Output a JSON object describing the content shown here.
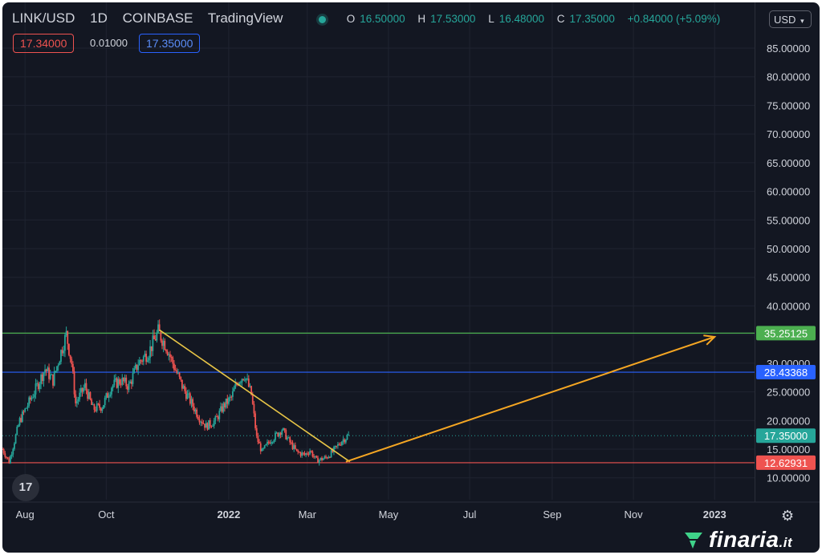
{
  "header": {
    "symbol": "LINK/USD",
    "interval": "1D",
    "exchange": "COINBASE",
    "platform": "TradingView",
    "open_label": "O",
    "open": "16.50000",
    "high_label": "H",
    "high": "17.53000",
    "low_label": "L",
    "low": "16.48000",
    "close_label": "C",
    "close": "17.35000",
    "change": "+0.84000 (+5.09%)"
  },
  "trade": {
    "sell": "17.34000",
    "spread": "0.01000",
    "buy": "17.35000"
  },
  "currency": "USD",
  "brand": {
    "name": "finaria",
    "tld": ".it"
  },
  "colors": {
    "up": "#26a69a",
    "down": "#ef5350",
    "background": "#131722",
    "resistance": "#4caf50",
    "support_blue": "#2962ff",
    "support_red": "#ef5350",
    "trendline": "#e8c547",
    "projection": "#f5a623"
  },
  "chart_data": {
    "type": "candlestick",
    "title": "LINK/USD 1D",
    "x_range": [
      "2021-07-15",
      "2023-01-31"
    ],
    "x_ticks": [
      {
        "date": "2021-08-01",
        "label": "Aug",
        "bold": false
      },
      {
        "date": "2021-10-01",
        "label": "Oct",
        "bold": false
      },
      {
        "date": "2022-01-01",
        "label": "2022",
        "bold": true
      },
      {
        "date": "2022-03-01",
        "label": "Mar",
        "bold": false
      },
      {
        "date": "2022-05-01",
        "label": "May",
        "bold": false
      },
      {
        "date": "2022-07-01",
        "label": "Jul",
        "bold": false
      },
      {
        "date": "2022-09-01",
        "label": "Sep",
        "bold": false
      },
      {
        "date": "2022-11-01",
        "label": "Nov",
        "bold": false
      },
      {
        "date": "2023-01-01",
        "label": "2023",
        "bold": true
      }
    ],
    "y_ticks": [
      "10.00000",
      "15.00000",
      "20.00000",
      "25.00000",
      "30.00000",
      "35.00000",
      "40.00000",
      "45.00000",
      "50.00000",
      "55.00000",
      "60.00000",
      "65.00000",
      "70.00000",
      "75.00000",
      "80.00000",
      "85.00000"
    ],
    "ylim": [
      7,
      90
    ],
    "price_path": [
      [
        "2021-07-15",
        15.0
      ],
      [
        "2021-07-20",
        12.8
      ],
      [
        "2021-07-28",
        20.0
      ],
      [
        "2021-08-08",
        25.0
      ],
      [
        "2021-08-16",
        29.0
      ],
      [
        "2021-08-22",
        27.0
      ],
      [
        "2021-08-28",
        32.0
      ],
      [
        "2021-09-01",
        35.0
      ],
      [
        "2021-09-05",
        30.0
      ],
      [
        "2021-09-08",
        23.0
      ],
      [
        "2021-09-15",
        26.0
      ],
      [
        "2021-09-21",
        22.0
      ],
      [
        "2021-09-28",
        22.5
      ],
      [
        "2021-10-05",
        26.0
      ],
      [
        "2021-10-12",
        27.0
      ],
      [
        "2021-10-18",
        26.0
      ],
      [
        "2021-10-25",
        30.0
      ],
      [
        "2021-11-02",
        32.0
      ],
      [
        "2021-11-09",
        35.5
      ],
      [
        "2021-11-15",
        33.0
      ],
      [
        "2021-11-20",
        30.0
      ],
      [
        "2021-11-27",
        26.0
      ],
      [
        "2021-12-04",
        23.0
      ],
      [
        "2021-12-10",
        20.5
      ],
      [
        "2021-12-15",
        19.0
      ],
      [
        "2021-12-22",
        20.0
      ],
      [
        "2021-12-28",
        22.5
      ],
      [
        "2022-01-03",
        24.0
      ],
      [
        "2022-01-08",
        27.0
      ],
      [
        "2022-01-13",
        28.0
      ],
      [
        "2022-01-18",
        24.5
      ],
      [
        "2022-01-22",
        17.0
      ],
      [
        "2022-01-26",
        14.5
      ],
      [
        "2022-02-01",
        16.5
      ],
      [
        "2022-02-06",
        17.5
      ],
      [
        "2022-02-10",
        18.5
      ],
      [
        "2022-02-15",
        16.5
      ],
      [
        "2022-02-21",
        14.5
      ],
      [
        "2022-02-27",
        14.0
      ],
      [
        "2022-03-03",
        14.8
      ],
      [
        "2022-03-08",
        13.0
      ],
      [
        "2022-03-15",
        13.5
      ],
      [
        "2022-03-20",
        14.5
      ],
      [
        "2022-03-27",
        16.5
      ],
      [
        "2022-04-01",
        17.35
      ]
    ],
    "horizontal_lines": [
      {
        "name": "resistance",
        "value": 35.25125,
        "label": "35.25125",
        "color": "#4caf50"
      },
      {
        "name": "blue-level",
        "value": 28.43368,
        "label": "28.43368",
        "color": "#2962ff"
      },
      {
        "name": "last-price",
        "value": 17.35,
        "label": "17.35000",
        "color": "#26a69a"
      },
      {
        "name": "support",
        "value": 12.62931,
        "label": "12.62931",
        "color": "#ef5350"
      }
    ],
    "trendline": {
      "from": [
        "2021-11-10",
        35.8
      ],
      "to": [
        "2022-04-02",
        12.8
      ]
    },
    "projection_arrow": {
      "from": [
        "2022-03-30",
        12.8
      ],
      "to": [
        "2023-01-01",
        34.6
      ]
    },
    "grid": true
  }
}
